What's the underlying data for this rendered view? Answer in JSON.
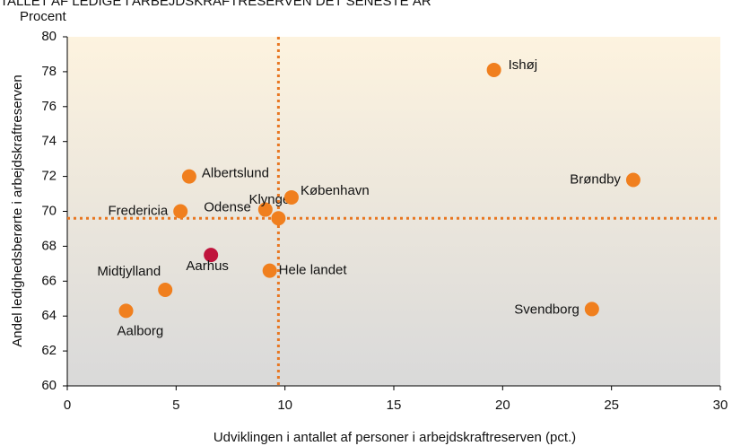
{
  "chart_data": {
    "type": "scatter",
    "title": "TALLET AF LEDIGE I ARBEJDSKRAFTRESERVEN DET SENESTE ÅR",
    "y_unit_label": "Procent",
    "xlabel": "Udviklingen i antallet af personer i arbejdskraftreserven (pct.)",
    "ylabel": "Andel ledighedsberørte i arbejdskraftreserven",
    "xlim": [
      0,
      30
    ],
    "ylim": [
      60,
      80
    ],
    "xticks": [
      0,
      5,
      10,
      15,
      20,
      25,
      30
    ],
    "yticks": [
      60,
      62,
      64,
      66,
      68,
      70,
      72,
      74,
      76,
      78,
      80
    ],
    "reference_x": 9.7,
    "reference_y": 69.6,
    "reference_color": "#e87722",
    "color": "#f07f1e",
    "highlight_color": "#c0143c",
    "highlight_index": 8,
    "labels": [
      "Ishøj",
      "Brøndby",
      "Svendborg",
      "Albertslund",
      "Fredericia",
      "Odense",
      "Klynge",
      "København",
      "Aarhus",
      "Hele landet",
      "Midtjylland",
      "Aalborg"
    ],
    "x": [
      19.6,
      26.0,
      24.1,
      5.6,
      5.2,
      9.1,
      9.7,
      10.3,
      6.6,
      9.3,
      4.5,
      2.7
    ],
    "values": [
      78.1,
      71.8,
      64.4,
      72.0,
      70.0,
      70.1,
      69.6,
      70.8,
      67.5,
      66.6,
      65.5,
      64.3
    ]
  }
}
